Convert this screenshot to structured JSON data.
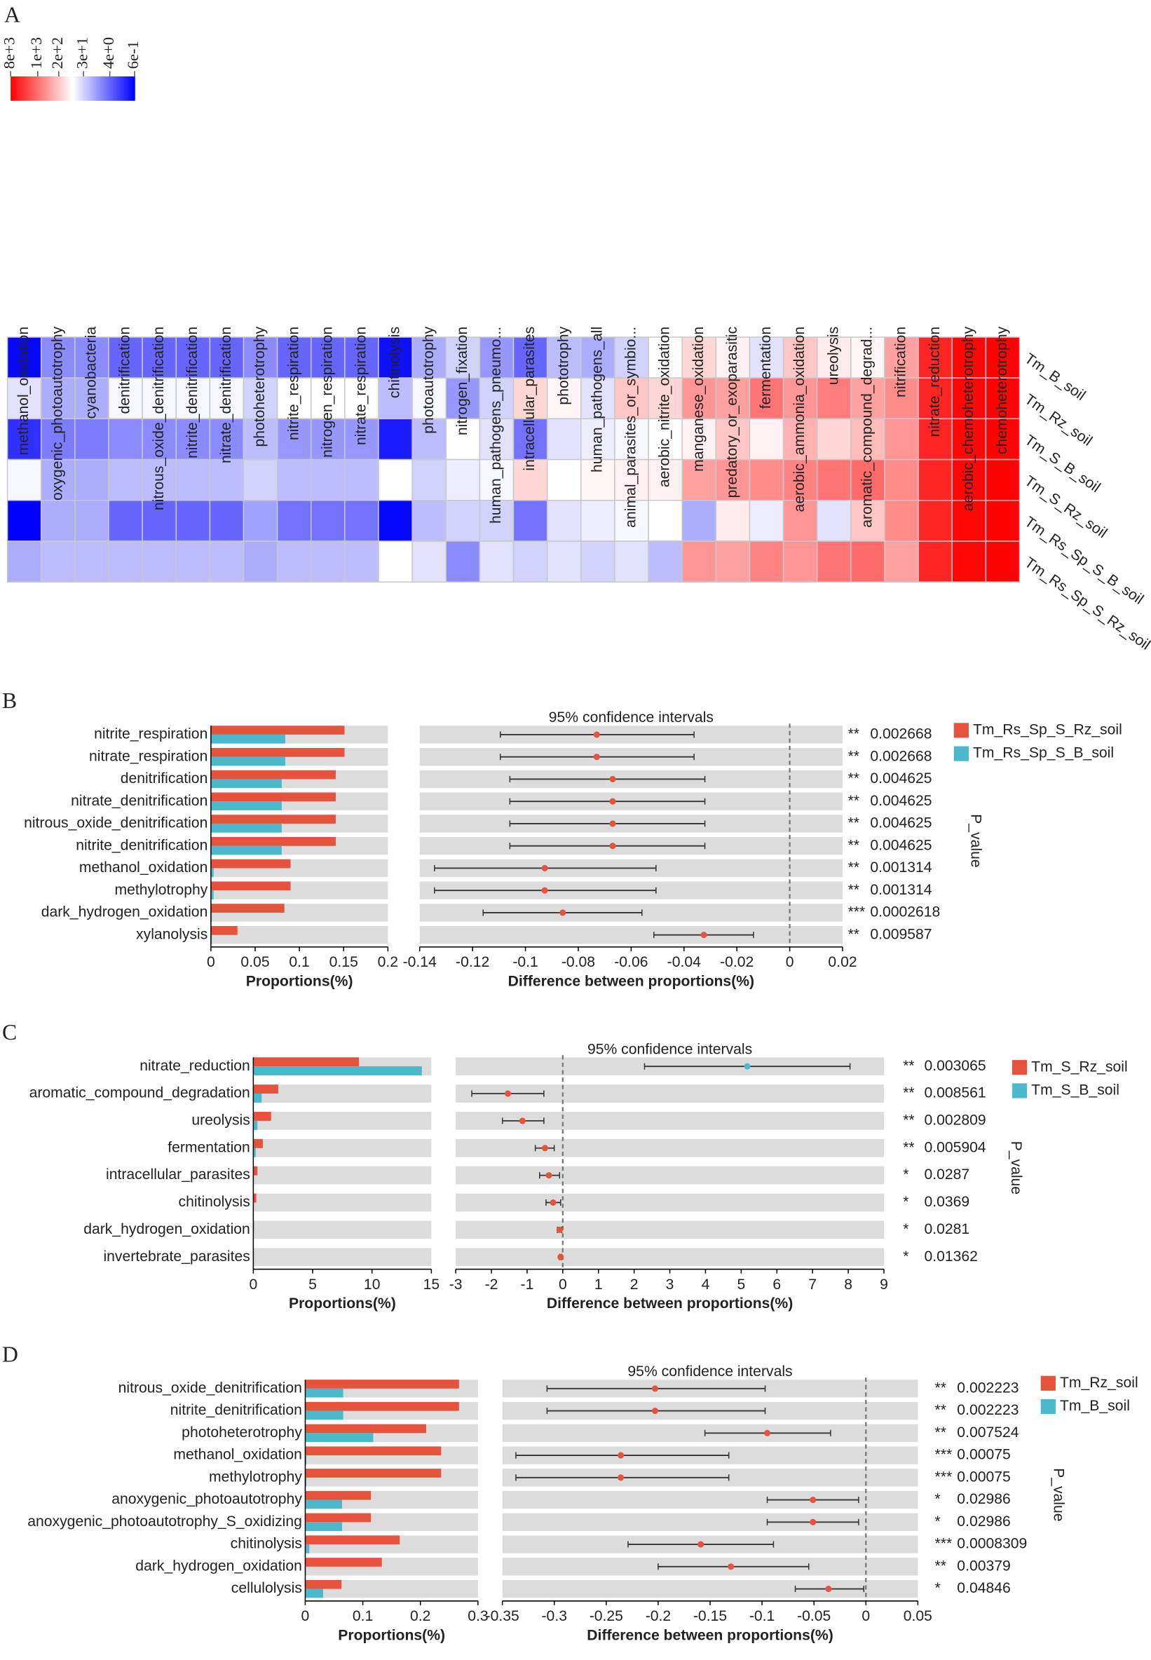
{
  "chart_data": [
    {
      "type": "heatmap",
      "panel_label": "A",
      "log_scale": true,
      "columns": [
        "methanol_oxidation",
        "oxygenic_photoautotrophy",
        "cyanobacteria",
        "denitrification",
        "nitrous_oxide_denitrification",
        "nitrite_denitrification",
        "nitrate_denitrification",
        "photoheterotrophy",
        "nitrite_respiration",
        "nitrogen_respiration",
        "nitrate_respiration",
        "chitinolysis",
        "photoautotrophy",
        "nitrogen_fixation",
        "human_pathogens_pneumo...",
        "intracellular_parasites",
        "phototrophy",
        "human_pathogens_all",
        "animal_parasites_or_symbio...",
        "aerobic_nitrite_oxidation",
        "manganese_oxidation",
        "predatory_or_exoparasitic",
        "fermentation",
        "aerobic_ammonia_oxidation",
        "ureolysis",
        "aromatic_compound_degrad...",
        "nitrification",
        "nitrate_reduction",
        "aerobic_chemoheterotrophy",
        "chemoheterotrophy"
      ],
      "rows": [
        "Tm_B_soil",
        "Tm_Rz_soil",
        "Tm_S_B_soil",
        "Tm_S_Rz_soil",
        "Tm_Rs_Sp_S_B_soil",
        "Tm_Rs_Sp_S_Rz_soil"
      ],
      "values": [
        [
          0.7,
          8,
          8,
          4,
          4,
          4,
          4,
          8,
          4,
          4,
          4,
          0.8,
          15,
          30,
          10,
          4,
          20,
          15,
          30,
          70,
          150,
          90,
          40,
          200,
          100,
          80,
          400,
          4000,
          7000,
          7500
        ],
        [
          40,
          15,
          15,
          60,
          60,
          60,
          60,
          30,
          70,
          70,
          70,
          20,
          60,
          10,
          30,
          150,
          80,
          40,
          200,
          150,
          500,
          400,
          900,
          500,
          800,
          400,
          600,
          4000,
          7000,
          7500
        ],
        [
          1.5,
          6,
          6,
          8,
          8,
          8,
          8,
          20,
          10,
          10,
          10,
          1,
          20,
          70,
          40,
          5,
          40,
          50,
          60,
          70,
          90,
          200,
          90,
          300,
          150,
          250,
          500,
          4000,
          7000,
          7500
        ],
        [
          60,
          15,
          15,
          20,
          20,
          20,
          20,
          30,
          20,
          20,
          20,
          70,
          30,
          50,
          60,
          150,
          70,
          80,
          90,
          90,
          400,
          500,
          600,
          700,
          900,
          1100,
          600,
          4000,
          7000,
          7500
        ],
        [
          0.6,
          15,
          15,
          4,
          4,
          4,
          4,
          12,
          5,
          5,
          5,
          0.7,
          20,
          30,
          30,
          5,
          40,
          50,
          60,
          70,
          15,
          100,
          50,
          500,
          40,
          200,
          600,
          4000,
          7000,
          7500
        ],
        [
          15,
          20,
          20,
          20,
          20,
          20,
          20,
          15,
          20,
          20,
          20,
          70,
          40,
          8,
          40,
          30,
          40,
          30,
          40,
          20,
          500,
          400,
          700,
          500,
          900,
          1100,
          400,
          4000,
          7000,
          7500
        ]
      ],
      "colorbar": {
        "lim": [
          0.6,
          8000
        ],
        "colors": [
          "#0000ff",
          "#ffffff",
          "#ff0000"
        ],
        "ticks": [
          {
            "value": 8000,
            "label": "8e+3"
          },
          {
            "value": 1000,
            "label": "1e+3"
          },
          {
            "value": 200,
            "label": "2e+2"
          },
          {
            "value": 30,
            "label": "3e+1"
          },
          {
            "value": 4,
            "label": "4e+0"
          },
          {
            "value": 0.6,
            "label": "6e-1"
          }
        ]
      }
    },
    {
      "type": "errorbar",
      "panel_label": "B",
      "title": "95% confidence intervals",
      "categories": [
        "nitrite_respiration",
        "nitrate_respiration",
        "denitrification",
        "nitrate_denitrification",
        "nitrous_oxide_denitrification",
        "nitrite_denitrification",
        "methanol_oxidation",
        "methylotrophy",
        "dark_hydrogen_oxidation",
        "xylanolysis"
      ],
      "series": [
        {
          "name": "Tm_Rs_Sp_S_Rz_soil",
          "color": "#e5533d",
          "values": [
            0.151,
            0.151,
            0.141,
            0.141,
            0.141,
            0.141,
            0.09,
            0.09,
            0.083,
            0.03
          ]
        },
        {
          "name": "Tm_Rs_Sp_S_B_soil",
          "color": "#4bb8cc",
          "values": [
            0.084,
            0.084,
            0.08,
            0.08,
            0.08,
            0.08,
            0.003,
            0.003,
            0.001,
            0.001
          ]
        }
      ],
      "xlim": [
        0,
        0.2
      ],
      "xticks": [
        0,
        0.05,
        0.1,
        0.15,
        0.2
      ],
      "x_label": "Proportions(%)",
      "diff_xlim": [
        -0.14,
        0.02
      ],
      "diff_xticks": [
        -0.14,
        -0.12,
        -0.1,
        -0.08,
        -0.06,
        -0.04,
        -0.02,
        0,
        0.02
      ],
      "diff_label": "Difference between proportions(%)",
      "differences": [
        -0.073,
        -0.073,
        -0.067,
        -0.067,
        -0.067,
        -0.067,
        -0.0927,
        -0.0927,
        -0.0859,
        -0.0325
      ],
      "ci_lower": [
        -0.1095,
        -0.1095,
        -0.1059,
        -0.1059,
        -0.1059,
        -0.1059,
        -0.1344,
        -0.1344,
        -0.116,
        -0.0514
      ],
      "ci_upper": [
        -0.0362,
        -0.0362,
        -0.0321,
        -0.0321,
        -0.0321,
        -0.0321,
        -0.0506,
        -0.0506,
        -0.0559,
        -0.0137
      ],
      "significance": [
        "**",
        "**",
        "**",
        "**",
        "**",
        "**",
        "**",
        "**",
        "***",
        "**"
      ],
      "p_values": [
        0.002668,
        0.002668,
        0.004625,
        0.004625,
        0.004625,
        0.004625,
        0.001314,
        0.001314,
        0.0002618,
        0.009587
      ],
      "p_label": "P_value"
    },
    {
      "type": "errorbar",
      "panel_label": "C",
      "title": "95% confidence intervals",
      "categories": [
        "nitrate_reduction",
        "aromatic_compound_degradation",
        "ureolysis",
        "fermentation",
        "intracellular_parasites",
        "chitinolysis",
        "dark_hydrogen_oxidation",
        "invertebrate_parasites"
      ],
      "series": [
        {
          "name": "Tm_S_Rz_soil",
          "color": "#e5533d",
          "values": [
            8.9,
            2.1,
            1.5,
            0.8,
            0.35,
            0.25,
            0.05,
            0.03
          ]
        },
        {
          "name": "Tm_S_B_soil",
          "color": "#4bb8cc",
          "values": [
            14.2,
            0.7,
            0.35,
            0.2,
            0.02,
            0.02,
            0.01,
            0.005
          ]
        }
      ],
      "xlim": [
        0,
        15
      ],
      "xticks": [
        0,
        5,
        10,
        15
      ],
      "x_label": "Proportions(%)",
      "diff_xlim": [
        -3,
        9
      ],
      "diff_xticks": [
        -3,
        -2,
        -1,
        0,
        1,
        2,
        3,
        4,
        5,
        6,
        7,
        8,
        9
      ],
      "diff_label": "Difference between proportions(%)",
      "differences": [
        5.17,
        -1.54,
        -1.13,
        -0.5,
        -0.39,
        -0.27,
        -0.09,
        -0.06
      ],
      "ci_lower": [
        2.29,
        -2.55,
        -1.69,
        -0.77,
        -0.65,
        -0.47,
        -0.15,
        -0.09
      ],
      "ci_upper": [
        8.05,
        -0.53,
        -0.53,
        -0.24,
        -0.09,
        -0.06,
        -0.03,
        -0.03
      ],
      "significance": [
        "**",
        "**",
        "**",
        "**",
        "*",
        "*",
        "*",
        "*"
      ],
      "p_values": [
        0.003065,
        0.008561,
        0.002809,
        0.005904,
        0.0287,
        0.0369,
        0.0281,
        0.01362
      ],
      "p_label": "P_value"
    },
    {
      "type": "errorbar",
      "panel_label": "D",
      "title": "95% confidence intervals",
      "categories": [
        "nitrous_oxide_denitrification",
        "nitrite_denitrification",
        "photoheterotrophy",
        "methanol_oxidation",
        "methylotrophy",
        "anoxygenic_photoautotrophy",
        "anoxygenic_photoautotrophy_S_oxidizing",
        "chitinolysis",
        "dark_hydrogen_oxidation",
        "cellulolysis"
      ],
      "series": [
        {
          "name": "Tm_Rz_soil",
          "color": "#e5533d",
          "values": [
            0.267,
            0.267,
            0.21,
            0.236,
            0.236,
            0.114,
            0.114,
            0.164,
            0.133,
            0.063
          ]
        },
        {
          "name": "Tm_B_soil",
          "color": "#4bb8cc",
          "values": [
            0.066,
            0.066,
            0.118,
            0.002,
            0.002,
            0.064,
            0.064,
            0.007,
            0.001,
            0.031
          ]
        }
      ],
      "xlim": [
        0,
        0.3
      ],
      "xticks": [
        0,
        0.1,
        0.2,
        0.3
      ],
      "x_label": "Proportions(%)",
      "diff_xlim": [
        -0.35,
        0.05
      ],
      "diff_xticks": [
        -0.35,
        -0.3,
        -0.25,
        -0.2,
        -0.15,
        -0.1,
        -0.05,
        0,
        0.05
      ],
      "diff_label": "Difference between proportions(%)",
      "differences": [
        -0.203,
        -0.203,
        -0.095,
        -0.236,
        -0.236,
        -0.051,
        -0.051,
        -0.159,
        -0.13,
        -0.036
      ],
      "ci_lower": [
        -0.307,
        -0.307,
        -0.155,
        -0.337,
        -0.337,
        -0.095,
        -0.095,
        -0.229,
        -0.2,
        -0.068
      ],
      "ci_upper": [
        -0.097,
        -0.097,
        -0.034,
        -0.132,
        -0.132,
        -0.007,
        -0.007,
        -0.089,
        -0.055,
        -0.002
      ],
      "significance": [
        "**",
        "**",
        "**",
        "***",
        "***",
        "*",
        "*",
        "***",
        "**",
        "*"
      ],
      "p_values": [
        0.002223,
        0.002223,
        0.007524,
        0.00075,
        0.00075,
        0.02986,
        0.02986,
        0.0008309,
        0.00379,
        0.04846
      ],
      "p_label": "P_value"
    }
  ]
}
